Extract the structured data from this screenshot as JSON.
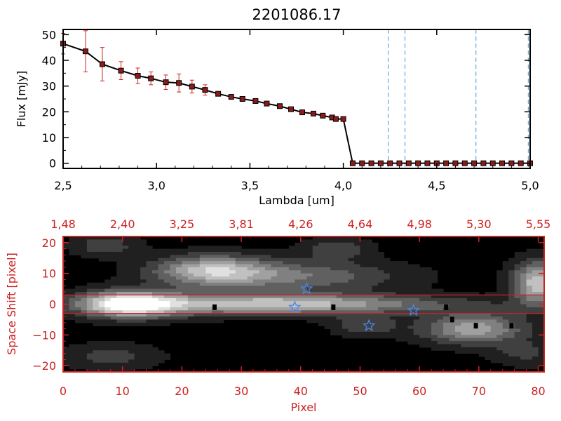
{
  "page": {
    "title": "2201086.17"
  },
  "chart_data": [
    {
      "type": "line",
      "xlabel": "Lambda [um]",
      "ylabel": "Flux [mJy]",
      "xlim": [
        2.5,
        5.0
      ],
      "ylim": [
        -2,
        52
      ],
      "xticks": [
        2.5,
        3.0,
        3.5,
        4.0,
        4.5,
        5.0
      ],
      "xtick_labels": [
        "2,5",
        "3,0",
        "3,5",
        "4,0",
        "4,5",
        "5,0"
      ],
      "yticks": [
        0,
        10,
        20,
        30,
        40,
        50
      ],
      "ytick_labels": [
        "0",
        "10",
        "20",
        "30",
        "40",
        "50"
      ],
      "colors": {
        "line": "#000000",
        "marker": "#8b1a1a",
        "errorbar": "#cc2222",
        "vlines": "#3a9ad9"
      },
      "series": [
        {
          "x": [
            2.5,
            2.62,
            2.71,
            2.81,
            2.9,
            2.97,
            3.05,
            3.12,
            3.19,
            3.26,
            3.33,
            3.4,
            3.46,
            3.53,
            3.59,
            3.66,
            3.72,
            3.78,
            3.84,
            3.89,
            3.94,
            3.96,
            4.0,
            4.05,
            4.1,
            4.15,
            4.2,
            4.25,
            4.3,
            4.35,
            4.4,
            4.45,
            4.5,
            4.55,
            4.6,
            4.65,
            4.7,
            4.75,
            4.8,
            4.85,
            4.9,
            4.95,
            5.0
          ],
          "y": [
            46.5,
            43.5,
            38.5,
            36.0,
            34.0,
            33.0,
            31.5,
            31.2,
            29.8,
            28.5,
            27.0,
            25.8,
            25.0,
            24.2,
            23.2,
            22.2,
            21.0,
            19.8,
            19.3,
            18.5,
            17.8,
            17.2,
            17.2,
            0,
            0,
            0,
            0,
            0,
            0,
            0,
            0,
            0,
            0,
            0,
            0,
            0,
            0,
            0,
            0,
            0,
            0,
            0,
            0
          ],
          "yerr": [
            4.0,
            8.0,
            6.5,
            3.5,
            3.0,
            2.5,
            2.8,
            3.5,
            2.5,
            2.0,
            0.8,
            0.8,
            0.6,
            0.6,
            0.6,
            0.6,
            0.6,
            0.6,
            0.6,
            0.6,
            0.6,
            0.6,
            0.6,
            0,
            0,
            0,
            0,
            0,
            0,
            0,
            0,
            0,
            0,
            0,
            0,
            0,
            0,
            0,
            0,
            0,
            0,
            0,
            0
          ]
        }
      ],
      "vlines": [
        4.24,
        4.33,
        4.71,
        4.99
      ]
    },
    {
      "type": "heatmap",
      "xlabel": "Pixel",
      "ylabel": "Space Shift [pixel]",
      "xlim": [
        0,
        81
      ],
      "ylim": [
        -22,
        22
      ],
      "xticks": [
        0,
        10,
        20,
        30,
        40,
        50,
        60,
        70,
        80
      ],
      "xtick_labels": [
        "0",
        "10",
        "20",
        "30",
        "40",
        "50",
        "60",
        "70",
        "80"
      ],
      "yticks": [
        -20,
        -10,
        0,
        10,
        20
      ],
      "ytick_labels": [
        "−20",
        "−10",
        "0",
        "10",
        "20"
      ],
      "top_axis_labels": [
        "1,48",
        "2,40",
        "3,25",
        "3,81",
        "4,26",
        "4,64",
        "4,98",
        "5,30",
        "5,55"
      ],
      "hlines": [
        3,
        -3
      ],
      "colors": {
        "axes": "#cc2222",
        "hlines": "#cc2222",
        "stars": "#4a86e8"
      },
      "stars": [
        {
          "x": 41.0,
          "y": 5.0
        },
        {
          "x": 39.0,
          "y": -1.0
        },
        {
          "x": 51.5,
          "y": -7.0
        },
        {
          "x": 59.0,
          "y": -2.0
        }
      ],
      "blobs": [
        {
          "x": 11,
          "y": 0,
          "amplitude": 255,
          "spread": [
            6,
            3
          ]
        },
        {
          "x": 30,
          "y": 0,
          "amplitude": 150,
          "spread": [
            14,
            2.5
          ]
        },
        {
          "x": 50,
          "y": 0,
          "amplitude": 95,
          "spread": [
            16,
            2.2
          ]
        },
        {
          "x": 25,
          "y": 11,
          "amplitude": 175,
          "spread": [
            7,
            3.5
          ]
        },
        {
          "x": 40,
          "y": 9,
          "amplitude": 105,
          "spread": [
            12,
            3.5
          ]
        },
        {
          "x": 69,
          "y": -8,
          "amplitude": 170,
          "spread": [
            6,
            3.5
          ]
        },
        {
          "x": 80,
          "y": 7,
          "amplitude": 200,
          "spread": [
            3,
            5
          ]
        },
        {
          "x": 46,
          "y": 18,
          "amplitude": 75,
          "spread": [
            4,
            2.5
          ]
        },
        {
          "x": 51,
          "y": -7,
          "amplitude": 70,
          "spread": [
            4,
            2.5
          ]
        },
        {
          "x": 8,
          "y": -17,
          "amplitude": 60,
          "spread": [
            6,
            3
          ]
        },
        {
          "x": 78,
          "y": -16,
          "amplitude": 55,
          "spread": [
            4,
            3
          ]
        },
        {
          "x": 7,
          "y": 19,
          "amplitude": 70,
          "spread": [
            4,
            2.5
          ]
        }
      ],
      "dark_pixels": [
        {
          "x": 25.5,
          "y": -1
        },
        {
          "x": 45.5,
          "y": -1
        },
        {
          "x": 65.5,
          "y": -5
        },
        {
          "x": 69.5,
          "y": -7
        },
        {
          "x": 75.5,
          "y": -7
        },
        {
          "x": 64.5,
          "y": -1
        }
      ]
    }
  ]
}
